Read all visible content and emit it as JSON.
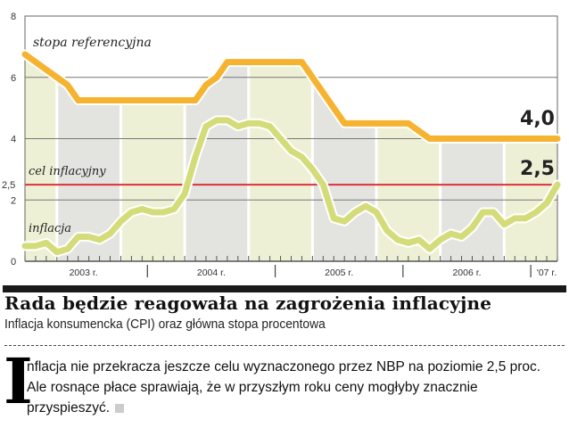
{
  "chart_data": {
    "type": "line",
    "title": "Rada będzie reagowała na zagrożenia inflacyjne",
    "subtitle": "Inflacja konsumencka (CPI) oraz główna stopa procentowa",
    "xlabel": "",
    "ylabel": "",
    "ylim": [
      0,
      8
    ],
    "y_ticks": [
      {
        "v": 0,
        "label": "0"
      },
      {
        "v": 2,
        "label": "2"
      },
      {
        "v": 2.5,
        "label": "2,5"
      },
      {
        "v": 4,
        "label": "4"
      },
      {
        "v": 6,
        "label": "6"
      },
      {
        "v": 8,
        "label": "8"
      }
    ],
    "x_start": "2003-01",
    "x_frequency": "monthly",
    "year_labels": [
      "2003 r.",
      "2004 r.",
      "2005 r.",
      "2006 r.",
      "'07 r."
    ],
    "grid": true,
    "series": [
      {
        "name": "stopa referencyjna",
        "color": "#f5b330",
        "values": [
          6.75,
          6.5,
          6.25,
          6.0,
          5.75,
          5.25,
          5.25,
          5.25,
          5.25,
          5.25,
          5.25,
          5.25,
          5.25,
          5.25,
          5.25,
          5.25,
          5.25,
          5.75,
          6.0,
          6.5,
          6.5,
          6.5,
          6.5,
          6.5,
          6.5,
          6.5,
          6.5,
          6.0,
          5.5,
          5.0,
          4.5,
          4.5,
          4.5,
          4.5,
          4.5,
          4.5,
          4.5,
          4.25,
          4.0,
          4.0,
          4.0,
          4.0,
          4.0,
          4.0,
          4.0,
          4.0,
          4.0,
          4.0,
          4.0,
          4.0,
          4.0
        ],
        "end_label": "4,0"
      },
      {
        "name": "inflacja",
        "color": "#d4dc7a",
        "values": [
          0.5,
          0.5,
          0.6,
          0.3,
          0.4,
          0.8,
          0.8,
          0.7,
          0.9,
          1.3,
          1.6,
          1.7,
          1.6,
          1.6,
          1.7,
          2.2,
          3.4,
          4.4,
          4.6,
          4.6,
          4.4,
          4.5,
          4.5,
          4.4,
          4.0,
          3.6,
          3.4,
          3.0,
          2.5,
          1.4,
          1.3,
          1.6,
          1.8,
          1.6,
          1.0,
          0.7,
          0.6,
          0.7,
          0.4,
          0.7,
          0.9,
          0.8,
          1.1,
          1.6,
          1.6,
          1.2,
          1.4,
          1.4,
          1.6,
          1.9,
          2.5
        ],
        "end_label": "2,5"
      },
      {
        "name": "cel inflacyjny",
        "color": "#d9323a",
        "values_constant": 2.5
      }
    ]
  },
  "text": {
    "heading": "Rada będzie reagowała na zagrożenia inflacyjne",
    "subheading": "Inflacja konsumencka (CPI) oraz główna stopa procentowa",
    "drop_cap": "I",
    "paragraph": "nflacja nie przekracza jeszcze celu wyznaczonego przez NBP na poziomie 2,5 proc. Ale rosnące płace sprawiają, że w przyszłym roku ceny mogłyby znacznie przyspieszyć."
  }
}
